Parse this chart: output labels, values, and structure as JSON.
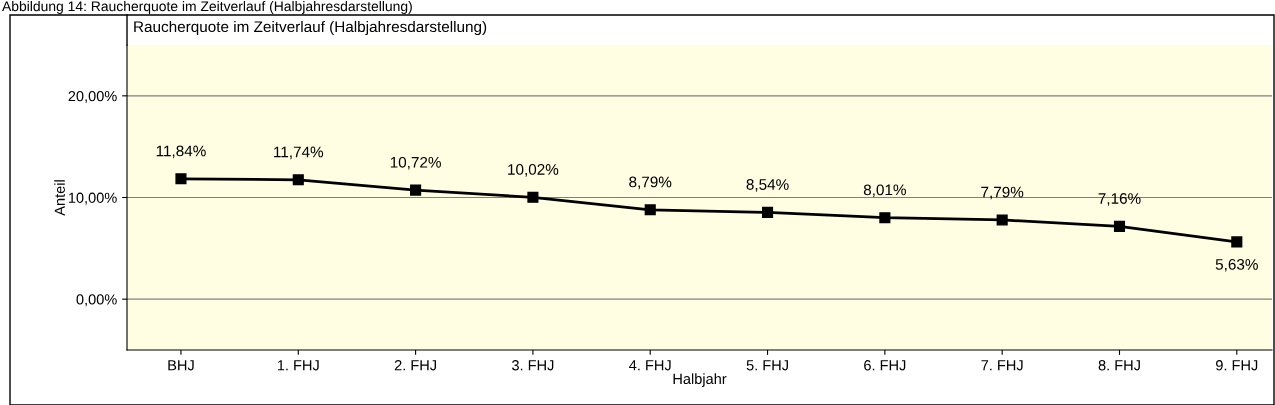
{
  "chart_data": {
    "type": "line",
    "title": "Raucherquote im Zeitverlauf (Halbjahresdarstellung)",
    "annotations": [
      "Abbildung 14: Raucherquote im Zeitverlauf (Halbjahresdarstellung)"
    ],
    "xlabel": "Halbjahr",
    "ylabel": "Anteil",
    "categories": [
      "BHJ",
      "1. FHJ",
      "2. FHJ",
      "3. FHJ",
      "4. FHJ",
      "5. FHJ",
      "6. FHJ",
      "7. FHJ",
      "8. FHJ",
      "9. FHJ"
    ],
    "series": [
      {
        "color": "#000000",
        "values": [
          11.84,
          11.74,
          10.72,
          10.02,
          8.79,
          8.54,
          8.01,
          7.79,
          7.16,
          5.63
        ],
        "value_labels": [
          "11,84%",
          "11,74%",
          "10,72%",
          "10,02%",
          "8,79%",
          "8,54%",
          "8,01%",
          "7,79%",
          "7,16%",
          "5,63%"
        ]
      }
    ],
    "ylim": [
      -5,
      25
    ],
    "yticks": [
      {
        "value": 0,
        "label": "0,00%"
      },
      {
        "value": 10,
        "label": "10,00%"
      },
      {
        "value": 20,
        "label": "20,00%"
      }
    ],
    "grid": "y",
    "marker": "square",
    "line_style": "solid",
    "legend": false
  }
}
